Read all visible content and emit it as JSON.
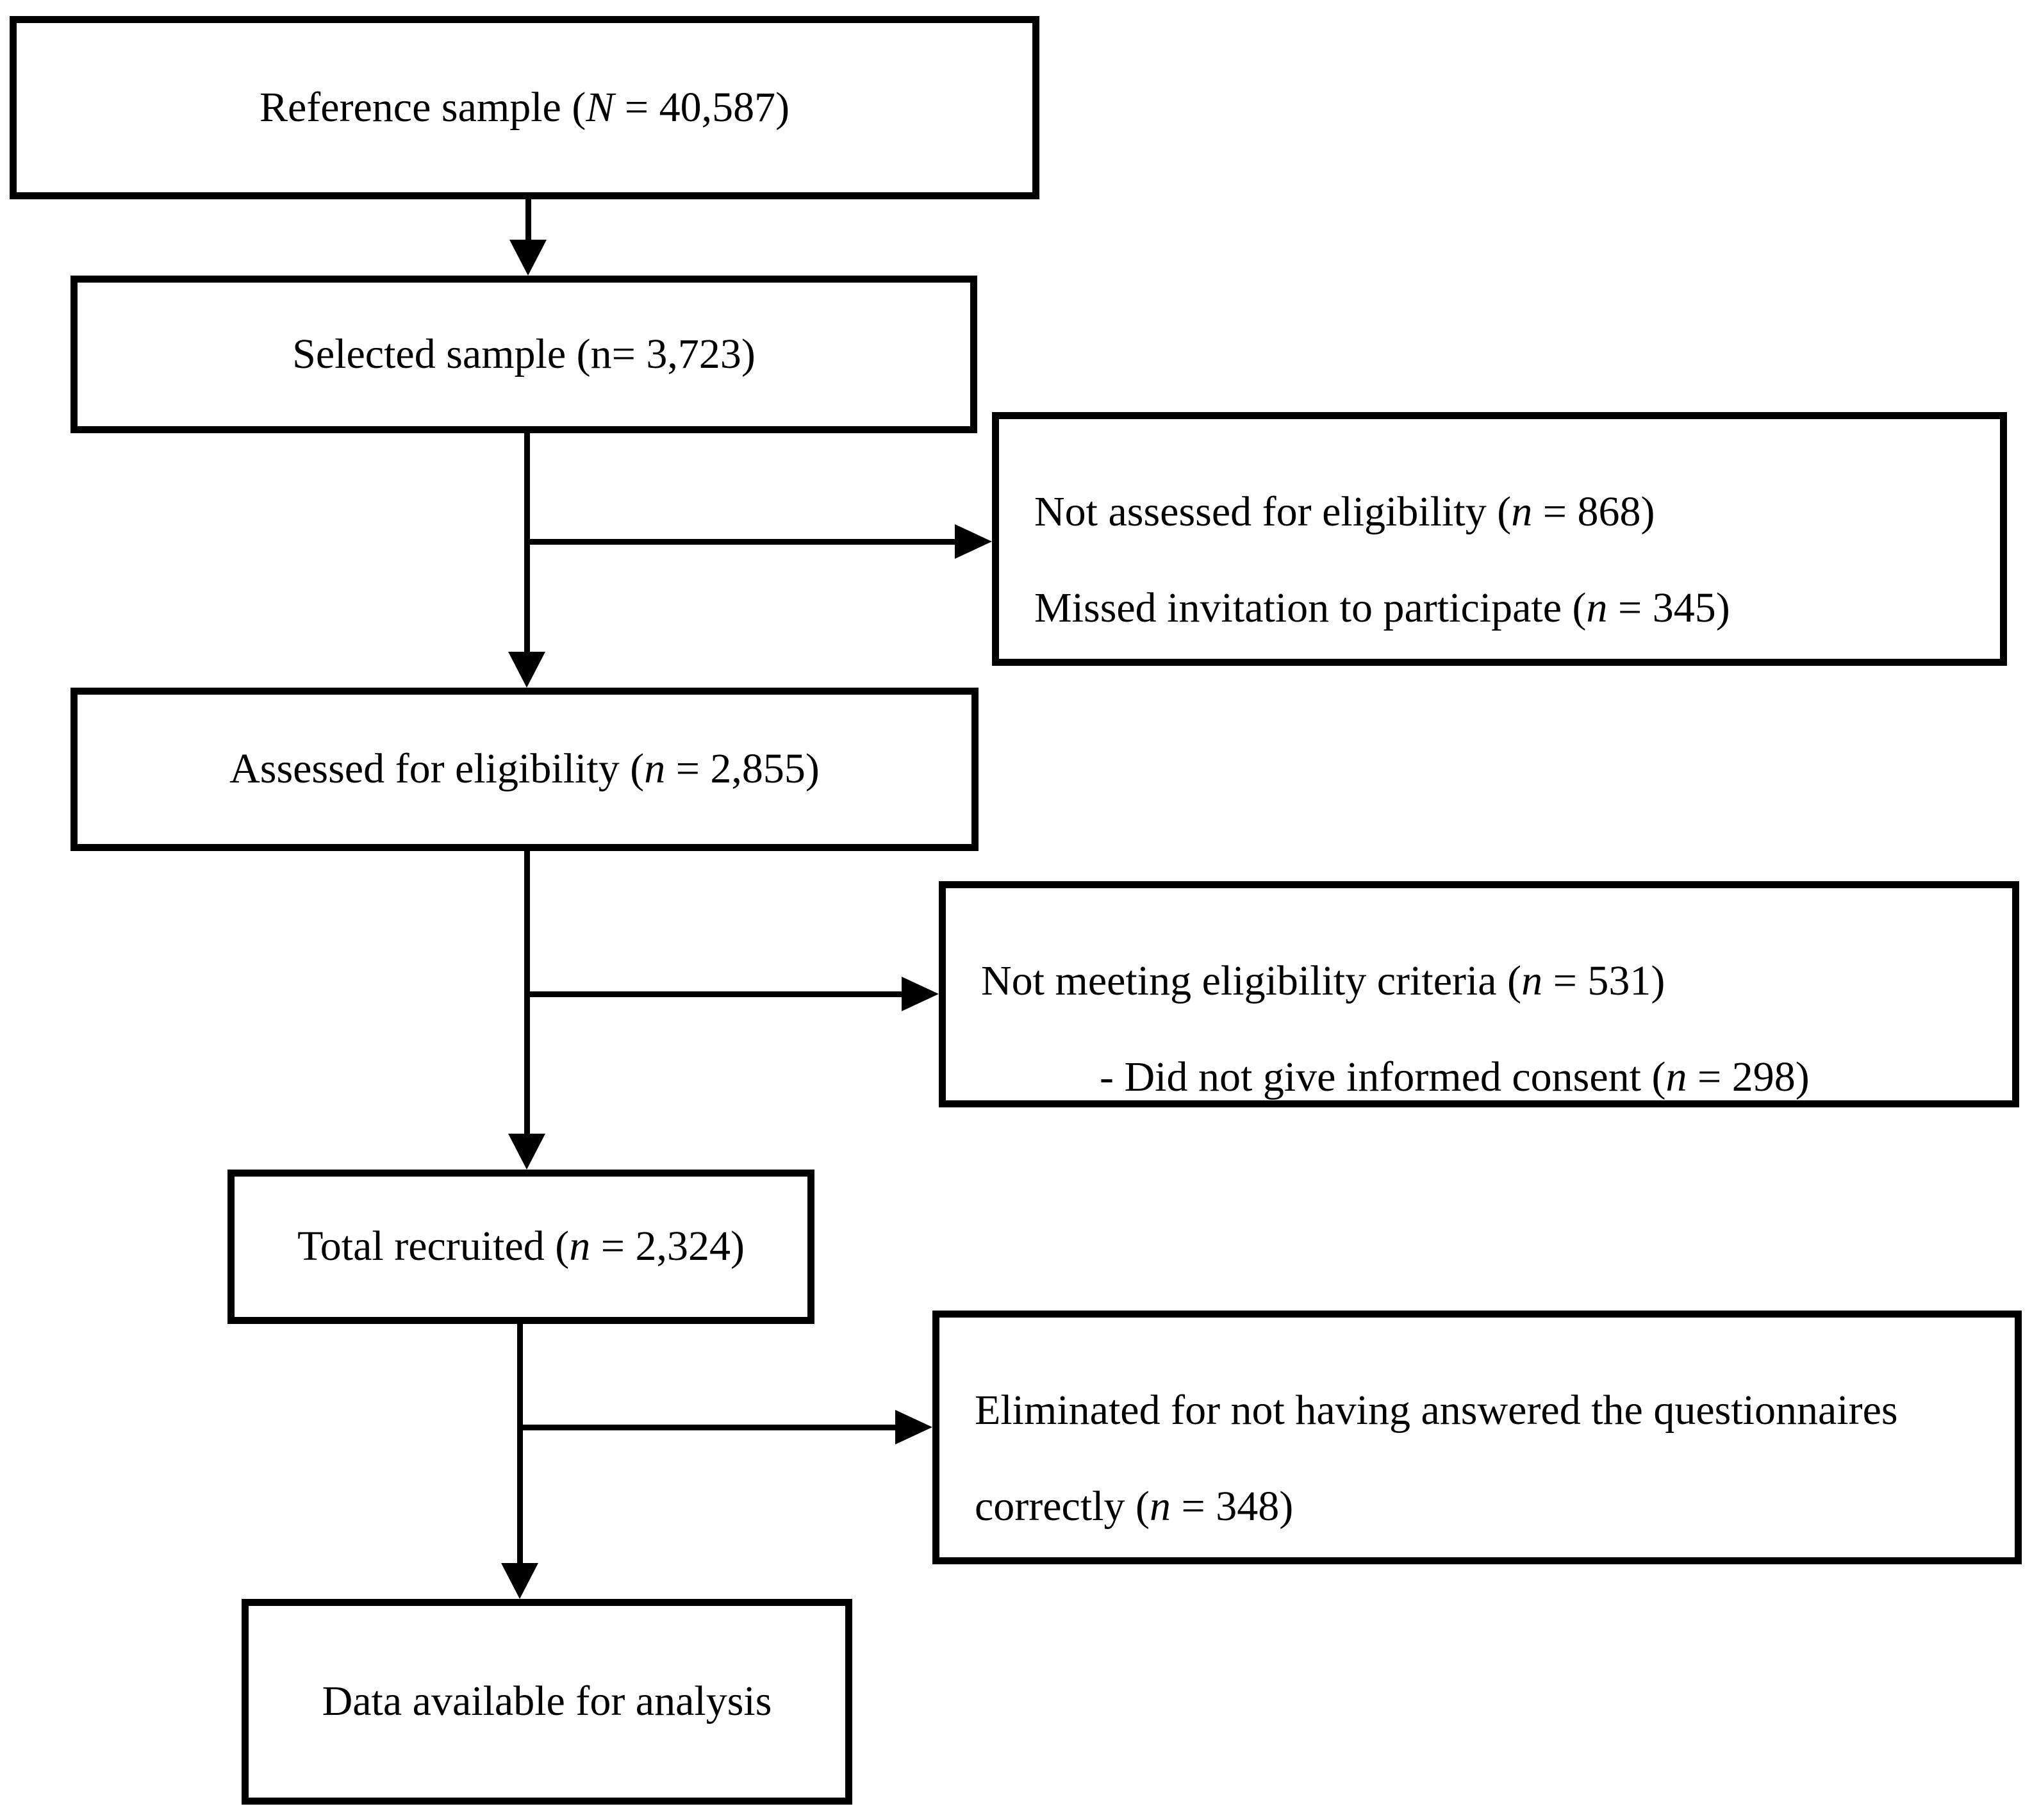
{
  "flowchart": {
    "colors": {
      "line": "#000000",
      "background": "#ffffff",
      "text": "#000000"
    },
    "main_boxes": {
      "reference": {
        "segments": [
          {
            "t": "Reference sample ("
          },
          {
            "t": "N",
            "i": true
          },
          {
            "t": " = 40,587)"
          }
        ]
      },
      "selected": {
        "segments": [
          {
            "t": "Selected sample (n= 3,723)"
          }
        ]
      },
      "assessed": {
        "segments": [
          {
            "t": "Assessed for eligibility ("
          },
          {
            "t": "n",
            "i": true
          },
          {
            "t": " = 2,855)"
          }
        ]
      },
      "recruited": {
        "segments": [
          {
            "t": "Total recruited ("
          },
          {
            "t": "n",
            "i": true
          },
          {
            "t": " = 2,324)"
          }
        ]
      },
      "data_available": {
        "segments": [
          {
            "t": "Data available for analysis"
          }
        ]
      }
    },
    "side_boxes": {
      "not_assessed": {
        "lines": [
          {
            "segments": [
              {
                "t": "Not assessed for eligibility ("
              },
              {
                "t": "n",
                "i": true
              },
              {
                "t": " = 868)"
              }
            ]
          },
          {
            "segments": [
              {
                "t": "Missed invitation to participate ("
              },
              {
                "t": "n",
                "i": true
              },
              {
                "t": " = 345)"
              }
            ]
          }
        ]
      },
      "not_meeting": {
        "lines": [
          {
            "segments": [
              {
                "t": "Not meeting eligibility criteria ("
              },
              {
                "t": "n",
                "i": true
              },
              {
                "t": " = 531)"
              }
            ]
          },
          {
            "segments": [
              {
                "t": "- Did not give informed consent ("
              },
              {
                "t": "n",
                "i": true
              },
              {
                "t": " = 298)"
              }
            ],
            "indent": true
          }
        ]
      },
      "eliminated": {
        "lines": [
          {
            "segments": [
              {
                "t": "Eliminated for not having answered the questionnaires"
              }
            ]
          },
          {
            "segments": [
              {
                "t": "correctly ("
              },
              {
                "t": "n",
                "i": true
              },
              {
                "t": " = 348)"
              }
            ]
          }
        ]
      }
    }
  }
}
